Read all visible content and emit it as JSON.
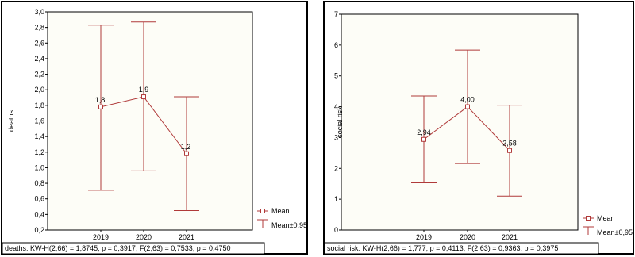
{
  "chart_data": [
    {
      "type": "line",
      "ylabel": "deaths",
      "ylim": [
        0.2,
        3.0
      ],
      "yticks": [
        "0,2",
        "0,4",
        "0,6",
        "0,8",
        "1,0",
        "1,2",
        "1,4",
        "1,6",
        "1,8",
        "2,0",
        "2,2",
        "2,4",
        "2,6",
        "2,8",
        "3,0"
      ],
      "categories": [
        "2019",
        "2020",
        "2021"
      ],
      "mean": [
        1.78,
        1.91,
        1.18
      ],
      "ci_low": [
        0.71,
        0.96,
        0.45
      ],
      "ci_high": [
        2.83,
        2.87,
        1.91
      ],
      "data_labels": [
        "1,8",
        "1,9",
        "1,2"
      ],
      "legend": [
        "Mean",
        "Mean±0,95"
      ],
      "stats": "deaths:  KW-H(2;66) = 1,8745; p = 0,3917;  F(2;63) = 0,7533; p = 0,4750",
      "grid": false
    },
    {
      "type": "line",
      "ylabel": "social risk",
      "ylim": [
        0,
        7
      ],
      "yticks": [
        "0",
        "1",
        "2",
        "3",
        "4",
        "5",
        "6",
        "7"
      ],
      "categories": [
        "2019",
        "2020",
        "2021"
      ],
      "mean": [
        2.94,
        4.0,
        2.58
      ],
      "ci_low": [
        1.53,
        2.16,
        1.1
      ],
      "ci_high": [
        4.35,
        5.84,
        4.05
      ],
      "data_labels": [
        "2,94",
        "4,00",
        "2,58"
      ],
      "legend": [
        "Mean",
        "Mean±0,95"
      ],
      "stats": "social risk:  KW-H(2;66) = 1,777; p = 0,4113;  F(2;63) = 0,9363; p = 0,3975",
      "grid": false
    }
  ],
  "colors": {
    "series": "#b03a3a",
    "plot_bg": "#fdfdf7",
    "frame": "#000000"
  }
}
